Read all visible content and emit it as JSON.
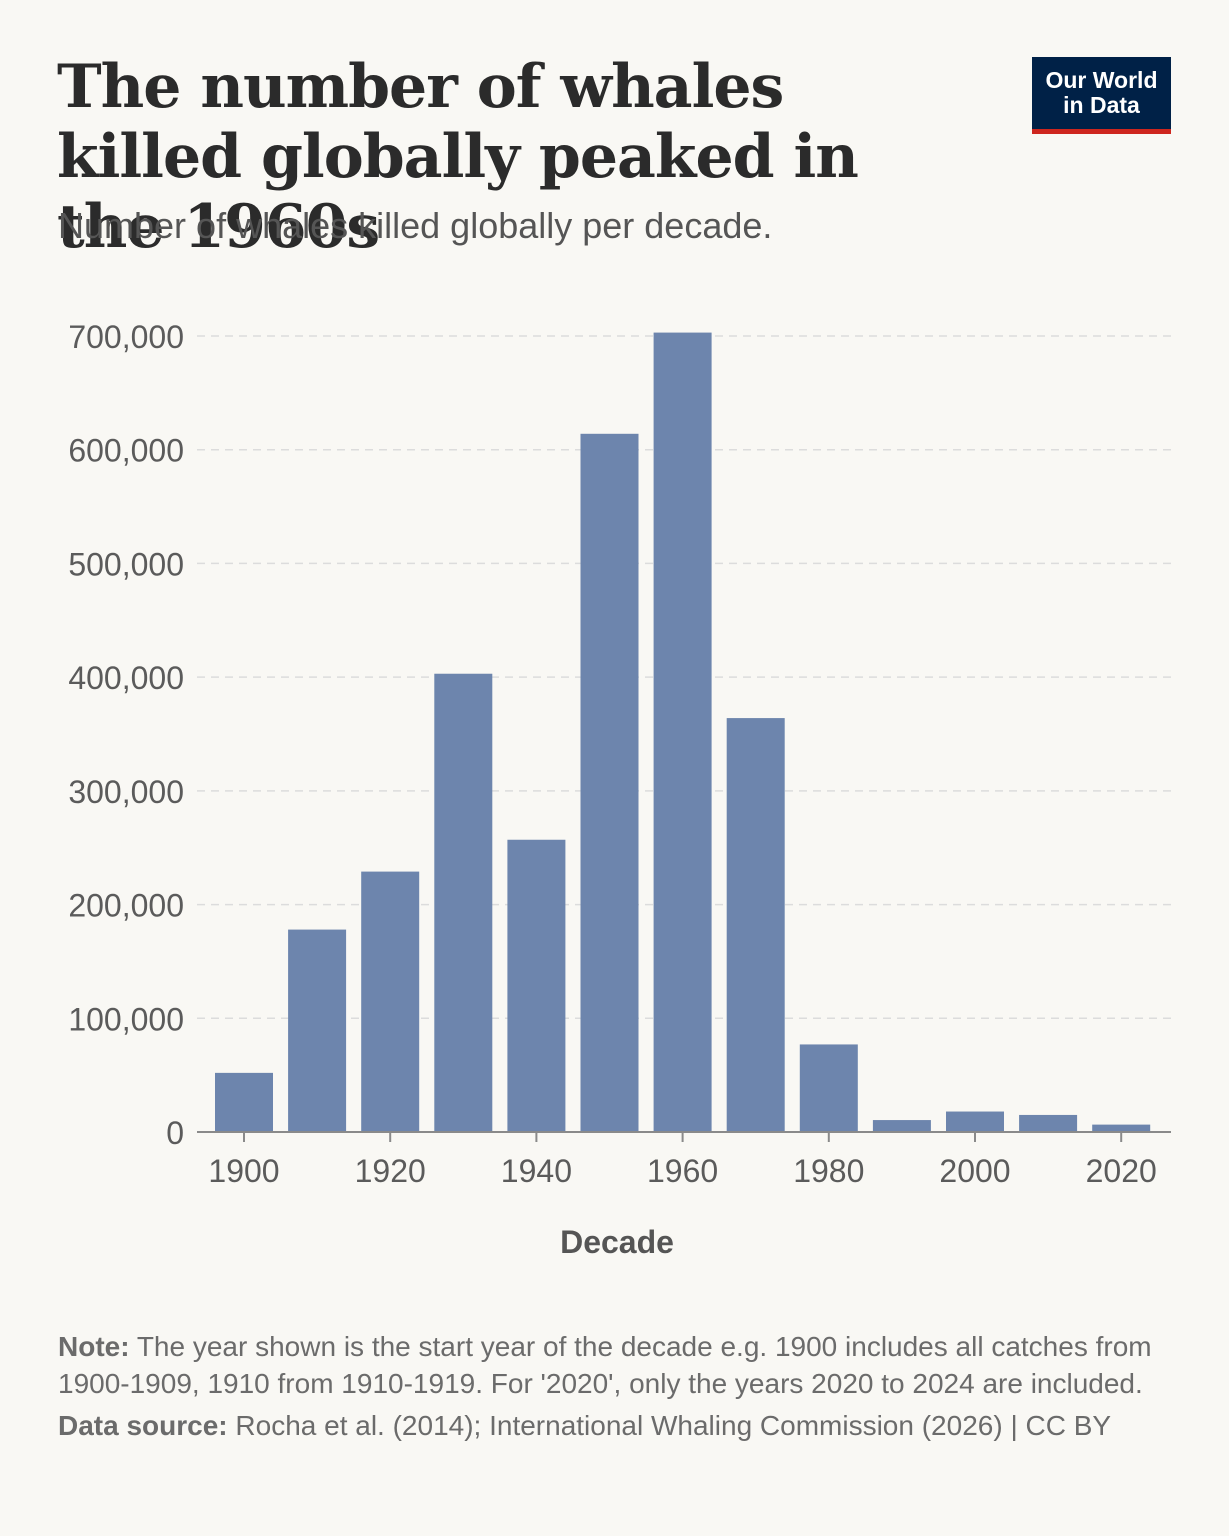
{
  "header": {
    "title": "The number of whales killed globally peaked in the 1960s",
    "subtitle": "Number of whales killed globally per decade."
  },
  "logo": {
    "line1": "Our World",
    "line2": "in Data",
    "bg_color": "#002147",
    "accent_color": "#ce261e"
  },
  "chart_data": {
    "type": "bar",
    "title": "The number of whales killed globally peaked in the 1960s",
    "subtitle": "Number of whales killed globally per decade.",
    "xlabel": "Decade",
    "ylabel": "",
    "categories": [
      "1900",
      "1910",
      "1920",
      "1930",
      "1940",
      "1950",
      "1960",
      "1970",
      "1980",
      "1990",
      "2000",
      "2010",
      "2020"
    ],
    "values": [
      52000,
      178000,
      229000,
      403000,
      257000,
      614000,
      703000,
      364000,
      77000,
      10500,
      18000,
      15000,
      6500
    ],
    "ylim": [
      0,
      700000
    ],
    "yticks": [
      0,
      100000,
      200000,
      300000,
      400000,
      500000,
      600000,
      700000
    ],
    "ytick_labels": [
      "0",
      "100,000",
      "200,000",
      "300,000",
      "400,000",
      "500,000",
      "600,000",
      "700,000"
    ],
    "xtick_labels": [
      "1900",
      "1920",
      "1940",
      "1960",
      "1980",
      "2000",
      "2020"
    ],
    "grid": "horizontal-dashed",
    "bar_color": "#6d85ad"
  },
  "footer": {
    "note_label": "Note:",
    "note_text": " The year shown is the start year of the decade e.g. 1900 includes all catches from 1900-1909, 1910 from 1910-1919. For '2020', only the years 2020 to 2024 are included.",
    "source_label": "Data source:",
    "source_text": " Rocha et al. (2014); International Whaling Commission (2026) | CC BY"
  }
}
